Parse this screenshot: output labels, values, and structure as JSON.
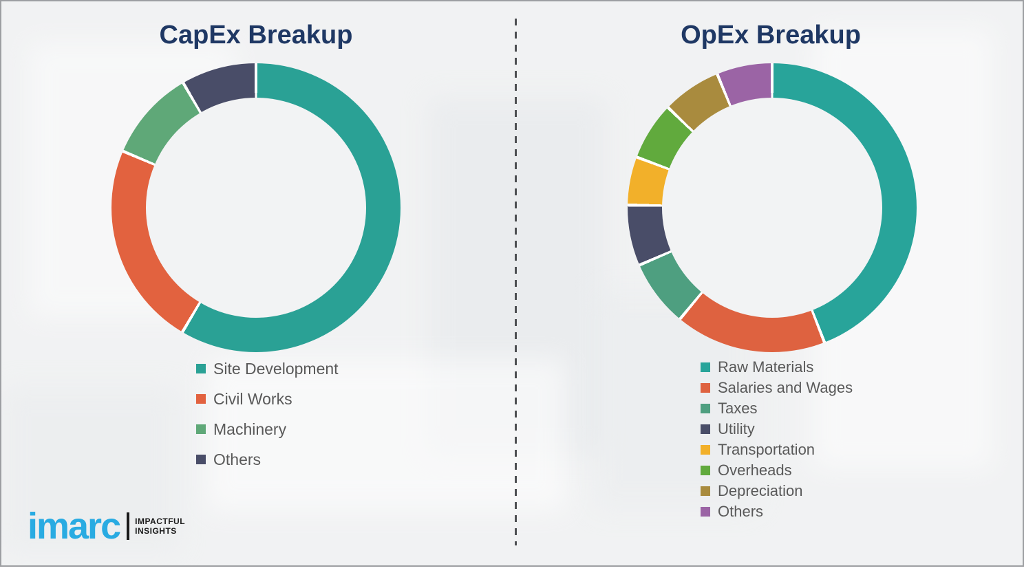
{
  "theme": {
    "title_color": "#1F3864",
    "legend_text_color": "#595959",
    "background_color": "#f1f2f3",
    "divider_color": "#4d4f52",
    "logo_blue": "#29ABE2"
  },
  "chart_data": [
    {
      "type": "pie",
      "subtype": "donut",
      "title": "CapEx Breakup",
      "labels": [
        "Site Development",
        "Civil Works",
        "Machinery",
        "Others"
      ],
      "values": [
        58.5,
        22.9,
        10.2,
        8.4
      ],
      "colors": [
        "#2AA195",
        "#E2623F",
        "#5FA878",
        "#494D68"
      ],
      "hole_ratio": 0.76,
      "legend_position": "below-left",
      "data_labels_shown": false
    },
    {
      "type": "pie",
      "subtype": "donut",
      "title": "OpEx Breakup",
      "labels": [
        "Raw Materials",
        "Salaries and Wages",
        "Taxes",
        "Utility",
        "Transportation",
        "Overheads",
        "Depreciation",
        "Others"
      ],
      "values": [
        44.1,
        16.9,
        7.5,
        6.8,
        5.4,
        6.5,
        6.6,
        6.2
      ],
      "colors": [
        "#28A49A",
        "#DE6240",
        "#4E9F80",
        "#494D68",
        "#F2B02A",
        "#61AA3D",
        "#A98B3E",
        "#9B64A5"
      ],
      "hole_ratio": 0.76,
      "legend_position": "below-left",
      "data_labels_shown": false
    }
  ],
  "branding": {
    "logo_text": "imarc",
    "tagline": [
      "IMPACTFUL",
      "INSIGHTS"
    ]
  }
}
